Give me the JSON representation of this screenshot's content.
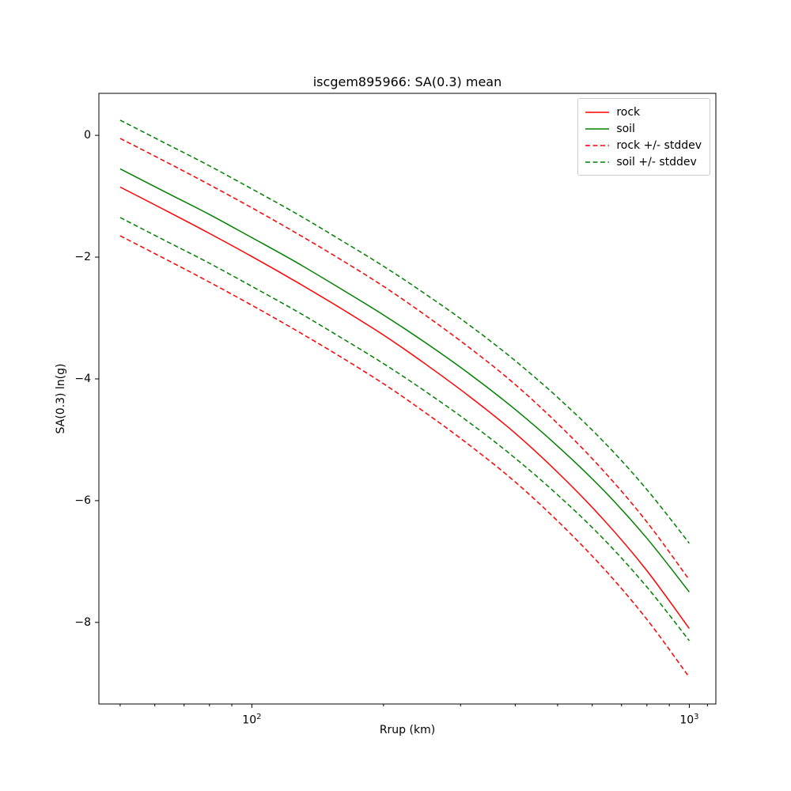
{
  "figure": {
    "title": "iscgem895966: SA(0.3) mean",
    "xlabel": "Rrup (km)",
    "ylabel": "SA(0.3) ln(g)"
  },
  "chart_data": {
    "type": "line",
    "title": "iscgem895966: SA(0.3) mean",
    "xlabel": "Rrup (km)",
    "ylabel": "SA(0.3) ln(g)",
    "x_scale": "log",
    "xlim": [
      44.7,
      1150
    ],
    "ylim": [
      -9.34,
      0.69
    ],
    "grid": false,
    "legend_position": "upper right",
    "stddev": 0.8,
    "x_major_ticks": [
      {
        "value": 100,
        "base": "10",
        "exp": "2"
      },
      {
        "value": 1000,
        "base": "10",
        "exp": "3"
      }
    ],
    "x_minor_ticks": [
      50,
      60,
      70,
      80,
      90,
      200,
      300,
      400,
      500,
      600,
      700,
      800,
      900,
      1100
    ],
    "y_ticks": [
      {
        "value": 0,
        "label": "0"
      },
      {
        "value": -2,
        "label": "−2"
      },
      {
        "value": -4,
        "label": "−4"
      },
      {
        "value": -6,
        "label": "−6"
      },
      {
        "value": -8,
        "label": "−8"
      }
    ],
    "x": [
      50,
      63,
      79,
      100,
      126,
      158,
      200,
      251,
      316,
      398,
      501,
      631,
      794,
      1000
    ],
    "series": [
      {
        "name": "rock",
        "color": "#ff0000",
        "style": "solid",
        "values": [
          -0.85,
          -1.22,
          -1.59,
          -1.99,
          -2.4,
          -2.82,
          -3.28,
          -3.77,
          -4.3,
          -4.88,
          -5.54,
          -6.28,
          -7.12,
          -8.1
        ]
      },
      {
        "name": "soil",
        "color": "#008000",
        "style": "solid",
        "values": [
          -0.55,
          -0.92,
          -1.28,
          -1.68,
          -2.08,
          -2.5,
          -2.95,
          -3.42,
          -3.93,
          -4.49,
          -5.11,
          -5.8,
          -6.59,
          -7.5
        ]
      },
      {
        "name": "rock-plus-stddev",
        "color": "#ff0000",
        "style": "dashed",
        "values": [
          -0.05,
          -0.42,
          -0.79,
          -1.19,
          -1.6,
          -2.02,
          -2.48,
          -2.97,
          -3.5,
          -4.08,
          -4.74,
          -5.48,
          -6.32,
          -7.3
        ]
      },
      {
        "name": "rock-minus-stddev",
        "color": "#ff0000",
        "style": "dashed",
        "values": [
          -1.65,
          -2.02,
          -2.39,
          -2.79,
          -3.2,
          -3.62,
          -4.08,
          -4.57,
          -5.1,
          -5.68,
          -6.34,
          -7.08,
          -7.92,
          -8.9
        ]
      },
      {
        "name": "soil-plus-stddev",
        "color": "#008000",
        "style": "dashed",
        "values": [
          0.25,
          -0.12,
          -0.48,
          -0.88,
          -1.28,
          -1.7,
          -2.15,
          -2.62,
          -3.13,
          -3.69,
          -4.31,
          -5.0,
          -5.79,
          -6.7
        ]
      },
      {
        "name": "soil-minus-stddev",
        "color": "#008000",
        "style": "dashed",
        "values": [
          -1.35,
          -1.72,
          -2.08,
          -2.48,
          -2.88,
          -3.3,
          -3.75,
          -4.22,
          -4.73,
          -5.29,
          -5.91,
          -6.6,
          -7.39,
          -8.3
        ]
      }
    ],
    "legend": [
      {
        "label": "rock",
        "color": "#ff0000",
        "style": "solid"
      },
      {
        "label": "soil",
        "color": "#008000",
        "style": "solid"
      },
      {
        "label": "rock +/- stddev",
        "color": "#ff0000",
        "style": "dashed"
      },
      {
        "label": "soil +/- stddev",
        "color": "#008000",
        "style": "dashed"
      }
    ]
  }
}
